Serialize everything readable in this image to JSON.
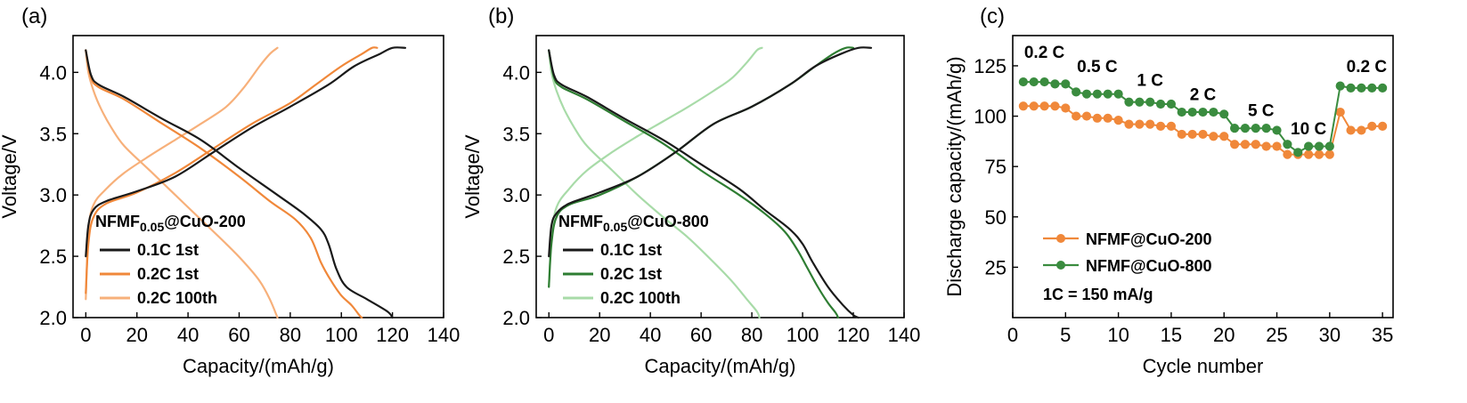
{
  "chart_data": [
    {
      "type": "line",
      "panel_label": "(a)",
      "xlabel": "Capacity/(mAh/g)",
      "ylabel": "Voltage/V",
      "xlim": [
        -5,
        140
      ],
      "ylim": [
        2.0,
        4.3
      ],
      "xticks": [
        "0",
        "20",
        "40",
        "60",
        "80",
        "100",
        "120",
        "140"
      ],
      "xtick_values": [
        0,
        20,
        40,
        60,
        80,
        100,
        120,
        140
      ],
      "yticks": [
        "2.0",
        "2.5",
        "3.0",
        "3.5",
        "4.0"
      ],
      "ytick_values": [
        2.0,
        2.5,
        3.0,
        3.5,
        4.0
      ],
      "annotation": {
        "prefix": "NFMF",
        "sub": "0.05",
        "suffix": "@CuO-200"
      },
      "series": [
        {
          "name": "0.1C 1st",
          "color": "#1a1a1a",
          "charge": [
            [
              0,
              2.5
            ],
            [
              1,
              2.75
            ],
            [
              3,
              2.88
            ],
            [
              8,
              2.95
            ],
            [
              20,
              3.03
            ],
            [
              35,
              3.15
            ],
            [
              50,
              3.35
            ],
            [
              65,
              3.55
            ],
            [
              80,
              3.72
            ],
            [
              95,
              3.9
            ],
            [
              105,
              4.05
            ],
            [
              115,
              4.15
            ],
            [
              120,
              4.2
            ],
            [
              125,
              4.2
            ]
          ],
          "discharge": [
            [
              0,
              4.18
            ],
            [
              2,
              3.98
            ],
            [
              5,
              3.9
            ],
            [
              15,
              3.8
            ],
            [
              30,
              3.62
            ],
            [
              45,
              3.45
            ],
            [
              60,
              3.22
            ],
            [
              75,
              3.0
            ],
            [
              85,
              2.85
            ],
            [
              92,
              2.72
            ],
            [
              95,
              2.6
            ],
            [
              98,
              2.4
            ],
            [
              102,
              2.25
            ],
            [
              110,
              2.15
            ],
            [
              118,
              2.05
            ],
            [
              120,
              2.0
            ]
          ]
        },
        {
          "name": "0.2C 1st",
          "color": "#f0883a",
          "charge": [
            [
              0,
              2.2
            ],
            [
              1,
              2.6
            ],
            [
              3,
              2.82
            ],
            [
              8,
              2.93
            ],
            [
              20,
              3.02
            ],
            [
              35,
              3.18
            ],
            [
              50,
              3.38
            ],
            [
              65,
              3.58
            ],
            [
              80,
              3.75
            ],
            [
              90,
              3.9
            ],
            [
              100,
              4.05
            ],
            [
              108,
              4.15
            ],
            [
              112,
              4.2
            ],
            [
              114,
              4.2
            ]
          ],
          "discharge": [
            [
              0,
              4.18
            ],
            [
              2,
              3.96
            ],
            [
              5,
              3.88
            ],
            [
              15,
              3.78
            ],
            [
              30,
              3.58
            ],
            [
              45,
              3.38
            ],
            [
              60,
              3.15
            ],
            [
              72,
              2.95
            ],
            [
              82,
              2.8
            ],
            [
              88,
              2.65
            ],
            [
              92,
              2.45
            ],
            [
              96,
              2.3
            ],
            [
              100,
              2.18
            ],
            [
              104,
              2.1
            ],
            [
              107,
              2.02
            ],
            [
              108,
              2.0
            ]
          ]
        },
        {
          "name": "0.2C 100th",
          "color": "#f7b07a",
          "charge": [
            [
              0,
              2.15
            ],
            [
              1,
              2.7
            ],
            [
              3,
              2.92
            ],
            [
              8,
              3.05
            ],
            [
              15,
              3.18
            ],
            [
              25,
              3.32
            ],
            [
              35,
              3.45
            ],
            [
              45,
              3.58
            ],
            [
              55,
              3.72
            ],
            [
              62,
              3.88
            ],
            [
              68,
              4.05
            ],
            [
              72,
              4.15
            ],
            [
              75,
              4.2
            ]
          ],
          "discharge": [
            [
              0,
              4.18
            ],
            [
              1,
              4.0
            ],
            [
              3,
              3.85
            ],
            [
              6,
              3.7
            ],
            [
              10,
              3.55
            ],
            [
              15,
              3.4
            ],
            [
              25,
              3.2
            ],
            [
              35,
              3.0
            ],
            [
              45,
              2.8
            ],
            [
              55,
              2.6
            ],
            [
              62,
              2.45
            ],
            [
              68,
              2.3
            ],
            [
              72,
              2.15
            ],
            [
              75,
              2.0
            ]
          ]
        }
      ]
    },
    {
      "type": "line",
      "panel_label": "(b)",
      "xlabel": "Capacity/(mAh/g)",
      "ylabel": "Voltage/V",
      "xlim": [
        -5,
        140
      ],
      "ylim": [
        2.0,
        4.3
      ],
      "xticks": [
        "0",
        "20",
        "40",
        "60",
        "80",
        "100",
        "120",
        "140"
      ],
      "xtick_values": [
        0,
        20,
        40,
        60,
        80,
        100,
        120,
        140
      ],
      "yticks": [
        "2.0",
        "2.5",
        "3.0",
        "3.5",
        "4.0"
      ],
      "ytick_values": [
        2.0,
        2.5,
        3.0,
        3.5,
        4.0
      ],
      "annotation": {
        "prefix": "NFMF",
        "sub": "0.05",
        "suffix": "@CuO-800"
      },
      "series": [
        {
          "name": "0.1C 1st",
          "color": "#1a1a1a",
          "charge": [
            [
              0,
              2.5
            ],
            [
              1,
              2.75
            ],
            [
              3,
              2.85
            ],
            [
              8,
              2.93
            ],
            [
              20,
              3.02
            ],
            [
              35,
              3.15
            ],
            [
              50,
              3.35
            ],
            [
              65,
              3.58
            ],
            [
              80,
              3.72
            ],
            [
              95,
              3.9
            ],
            [
              105,
              4.05
            ],
            [
              115,
              4.15
            ],
            [
              122,
              4.2
            ],
            [
              127,
              4.2
            ]
          ],
          "discharge": [
            [
              0,
              4.18
            ],
            [
              2,
              3.98
            ],
            [
              5,
              3.9
            ],
            [
              15,
              3.8
            ],
            [
              30,
              3.62
            ],
            [
              45,
              3.45
            ],
            [
              60,
              3.25
            ],
            [
              75,
              3.05
            ],
            [
              85,
              2.88
            ],
            [
              95,
              2.72
            ],
            [
              100,
              2.6
            ],
            [
              104,
              2.45
            ],
            [
              110,
              2.25
            ],
            [
              116,
              2.1
            ],
            [
              120,
              2.02
            ],
            [
              122,
              2.0
            ]
          ]
        },
        {
          "name": "0.2C 1st",
          "color": "#2e7d32",
          "charge": [
            [
              0,
              2.25
            ],
            [
              1,
              2.6
            ],
            [
              3,
              2.82
            ],
            [
              8,
              2.92
            ],
            [
              20,
              3.0
            ],
            [
              35,
              3.15
            ],
            [
              50,
              3.35
            ],
            [
              65,
              3.58
            ],
            [
              80,
              3.72
            ],
            [
              95,
              3.9
            ],
            [
              105,
              4.05
            ],
            [
              112,
              4.15
            ],
            [
              117,
              4.2
            ],
            [
              120,
              4.2
            ]
          ],
          "discharge": [
            [
              0,
              4.18
            ],
            [
              2,
              3.96
            ],
            [
              5,
              3.88
            ],
            [
              15,
              3.78
            ],
            [
              30,
              3.6
            ],
            [
              45,
              3.42
            ],
            [
              60,
              3.2
            ],
            [
              75,
              3.0
            ],
            [
              85,
              2.85
            ],
            [
              93,
              2.7
            ],
            [
              98,
              2.55
            ],
            [
              102,
              2.4
            ],
            [
              106,
              2.25
            ],
            [
              110,
              2.12
            ],
            [
              113,
              2.04
            ],
            [
              114,
              2.0
            ]
          ]
        },
        {
          "name": "0.2C 100th",
          "color": "#a8dba8",
          "charge": [
            [
              0,
              2.25
            ],
            [
              1,
              2.65
            ],
            [
              3,
              2.9
            ],
            [
              8,
              3.05
            ],
            [
              15,
              3.2
            ],
            [
              25,
              3.35
            ],
            [
              35,
              3.48
            ],
            [
              45,
              3.6
            ],
            [
              55,
              3.72
            ],
            [
              65,
              3.85
            ],
            [
              72,
              3.95
            ],
            [
              78,
              4.08
            ],
            [
              82,
              4.18
            ],
            [
              84,
              4.2
            ]
          ],
          "discharge": [
            [
              0,
              4.18
            ],
            [
              1,
              4.0
            ],
            [
              3,
              3.85
            ],
            [
              6,
              3.7
            ],
            [
              10,
              3.55
            ],
            [
              15,
              3.4
            ],
            [
              25,
              3.2
            ],
            [
              35,
              3.0
            ],
            [
              45,
              2.82
            ],
            [
              55,
              2.65
            ],
            [
              65,
              2.45
            ],
            [
              72,
              2.3
            ],
            [
              78,
              2.15
            ],
            [
              82,
              2.05
            ],
            [
              83,
              2.0
            ]
          ]
        }
      ]
    },
    {
      "type": "line",
      "panel_label": "(c)",
      "xlabel": "Cycle number",
      "ylabel": "Discharge capacity/(mAh/g)",
      "xlim": [
        0,
        36
      ],
      "ylim": [
        0,
        140
      ],
      "xticks": [
        "0",
        "5",
        "10",
        "15",
        "20",
        "25",
        "30",
        "35"
      ],
      "xtick_values": [
        0,
        5,
        10,
        15,
        20,
        25,
        30,
        35
      ],
      "yticks": [
        "25",
        "50",
        "75",
        "100",
        "125"
      ],
      "ytick_values": [
        25,
        50,
        75,
        100,
        125
      ],
      "rate_labels": [
        {
          "text": "0.2 C",
          "x": 3.0,
          "y": 129
        },
        {
          "text": "0.5 C",
          "x": 8.0,
          "y": 122
        },
        {
          "text": "1 C",
          "x": 13.0,
          "y": 115
        },
        {
          "text": "2 C",
          "x": 18.0,
          "y": 108
        },
        {
          "text": "5 C",
          "x": 23.5,
          "y": 100
        },
        {
          "text": "10 C",
          "x": 28.0,
          "y": 91
        },
        {
          "text": "0.2 C",
          "x": 33.5,
          "y": 122
        }
      ],
      "note": "1C = 150 mA/g",
      "series": [
        {
          "name": "NFMF@CuO-200",
          "color": "#f0883a",
          "x": [
            1,
            2,
            3,
            4,
            5,
            6,
            7,
            8,
            9,
            10,
            11,
            12,
            13,
            14,
            15,
            16,
            17,
            18,
            19,
            20,
            21,
            22,
            23,
            24,
            25,
            26,
            27,
            28,
            29,
            30,
            31,
            32,
            33,
            34,
            35
          ],
          "values": [
            105,
            105,
            105,
            105,
            104,
            100,
            100,
            99,
            99,
            98,
            96,
            96,
            96,
            95,
            95,
            91,
            91,
            91,
            90,
            90,
            86,
            86,
            86,
            85,
            85,
            81,
            81,
            81,
            81,
            81,
            102,
            93,
            93,
            95,
            95
          ]
        },
        {
          "name": "NFMF@CuO-800",
          "color": "#3a8c3f",
          "x": [
            1,
            2,
            3,
            4,
            5,
            6,
            7,
            8,
            9,
            10,
            11,
            12,
            13,
            14,
            15,
            16,
            17,
            18,
            19,
            20,
            21,
            22,
            23,
            24,
            25,
            26,
            27,
            28,
            29,
            30,
            31,
            32,
            33,
            34,
            35
          ],
          "values": [
            117,
            117,
            117,
            116,
            116,
            112,
            111,
            111,
            111,
            111,
            107,
            107,
            107,
            106,
            106,
            102,
            102,
            102,
            102,
            101,
            94,
            94,
            94,
            94,
            93,
            86,
            82,
            85,
            85,
            85,
            115,
            114,
            114,
            114,
            114
          ]
        }
      ]
    }
  ]
}
